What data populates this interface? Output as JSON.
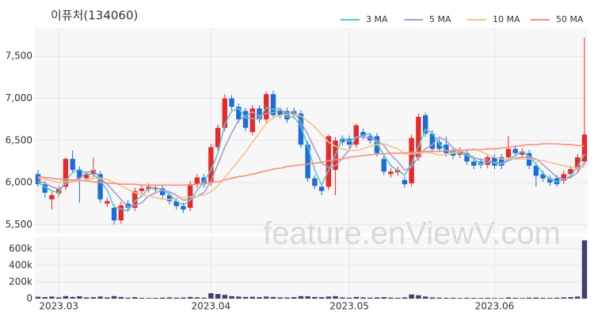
{
  "chart_data": {
    "type": "candlestick",
    "title": "이퓨처(134060)",
    "watermark": "feature.enViewV.com",
    "categories": [
      null,
      null,
      null,
      "2023.03",
      null,
      null,
      null,
      null,
      null,
      null,
      null,
      null,
      null,
      null,
      null,
      null,
      null,
      null,
      null,
      null,
      null,
      null,
      null,
      null,
      null,
      "2023.04",
      null,
      null,
      null,
      null,
      null,
      null,
      null,
      null,
      null,
      null,
      null,
      null,
      null,
      null,
      null,
      null,
      null,
      null,
      null,
      "2023.05",
      null,
      null,
      null,
      null,
      null,
      null,
      null,
      null,
      null,
      null,
      null,
      null,
      null,
      null,
      null,
      null,
      null,
      null,
      null,
      null,
      "2023.06",
      null,
      null,
      null,
      null,
      null,
      null,
      null,
      null,
      null,
      null,
      null,
      null,
      null
    ],
    "open": [
      6100,
      5980,
      5800,
      5870,
      5950,
      6280,
      6150,
      6050,
      6100,
      6100,
      5750,
      5700,
      5550,
      5750,
      5700,
      5900,
      5920,
      5920,
      5930,
      5850,
      5780,
      5720,
      5700,
      5980,
      6060,
      6000,
      6420,
      6650,
      7000,
      6900,
      6850,
      6600,
      6880,
      6750,
      7050,
      6850,
      6850,
      6850,
      6820,
      6450,
      6050,
      5950,
      5950,
      6150,
      6520,
      6520,
      6450,
      6600,
      6550,
      6550,
      6280,
      6100,
      6120,
      6030,
      5990,
      6300,
      6800,
      6580,
      6480,
      6450,
      6380,
      6330,
      6350,
      6250,
      6250,
      6210,
      6300,
      6300,
      6300,
      6400,
      6330,
      6350,
      6200,
      6100,
      6050,
      6050,
      6020,
      6100,
      6160,
      6250
    ],
    "high": [
      6150,
      6020,
      5890,
      5960,
      6300,
      6380,
      6190,
      6140,
      6300,
      6140,
      5820,
      5740,
      5770,
      5790,
      5940,
      5970,
      5990,
      5960,
      5970,
      5890,
      5820,
      5760,
      6020,
      6100,
      6100,
      6460,
      6690,
      7050,
      7040,
      6940,
      6890,
      6920,
      6920,
      7080,
      7090,
      6890,
      6890,
      6890,
      6860,
      6490,
      6090,
      5990,
      6570,
      6540,
      6560,
      6560,
      6700,
      6640,
      6590,
      6590,
      6320,
      6170,
      6190,
      6070,
      6570,
      6820,
      6830,
      6620,
      6520,
      6550,
      6420,
      6420,
      6390,
      6290,
      6290,
      6340,
      6340,
      6340,
      6550,
      6440,
      6410,
      6390,
      6240,
      6140,
      6090,
      6090,
      6140,
      6200,
      6340,
      7720
    ],
    "low": [
      5950,
      5820,
      5680,
      5830,
      5910,
      6110,
      5760,
      6010,
      6060,
      5760,
      5710,
      5500,
      5510,
      5660,
      5660,
      5860,
      5880,
      5880,
      5810,
      5740,
      5680,
      5640,
      5660,
      5940,
      5940,
      5960,
      6380,
      6610,
      6860,
      6710,
      6610,
      6560,
      6710,
      6710,
      6760,
      6760,
      6710,
      6760,
      6410,
      6010,
      5920,
      5850,
      5910,
      5850,
      6440,
      6410,
      6410,
      6510,
      6460,
      6310,
      6090,
      6060,
      6080,
      5940,
      5950,
      6260,
      6540,
      6360,
      6360,
      6310,
      6280,
      6290,
      6210,
      6160,
      6170,
      6170,
      6160,
      6160,
      6260,
      6310,
      6290,
      6160,
      5950,
      6010,
      5960,
      5950,
      5980,
      6060,
      6120,
      6210
    ],
    "close": [
      5980,
      5880,
      5850,
      5920,
      6280,
      6150,
      6050,
      6100,
      6150,
      5800,
      5780,
      5550,
      5730,
      5700,
      5900,
      5930,
      5950,
      5940,
      5850,
      5780,
      5720,
      5680,
      5980,
      6060,
      5980,
      6420,
      6650,
      7000,
      6900,
      6750,
      6650,
      6880,
      6750,
      7050,
      6800,
      6800,
      6750,
      6800,
      6450,
      6050,
      5960,
      5900,
      6550,
      6500,
      6480,
      6450,
      6680,
      6550,
      6500,
      6350,
      6130,
      6130,
      6150,
      5980,
      6530,
      6780,
      6580,
      6400,
      6400,
      6350,
      6320,
      6380,
      6250,
      6200,
      6210,
      6300,
      6200,
      6200,
      6400,
      6350,
      6370,
      6200,
      6080,
      6050,
      6000,
      5980,
      6100,
      6160,
      6300,
      6570
    ],
    "up_color": "#e8292b",
    "down_color": "#1a6ed8",
    "ylim": [
      5400,
      7840
    ],
    "yticks": [
      {
        "value": 5500,
        "label": "5,500"
      },
      {
        "value": 6000,
        "label": "6,000"
      },
      {
        "value": 6500,
        "label": "6,500"
      },
      {
        "value": 7000,
        "label": "7,000"
      },
      {
        "value": 7500,
        "label": "7,500"
      }
    ],
    "grid": true,
    "legend": "top-right",
    "series": [
      {
        "name": "3 MA",
        "color": "#5cc6c9",
        "values": [
          6000,
          5950,
          5900,
          5880,
          6020,
          6120,
          6160,
          6100,
          6100,
          6020,
          5910,
          5710,
          5690,
          5660,
          5780,
          5840,
          5930,
          5940,
          5910,
          5860,
          5780,
          5730,
          5790,
          5910,
          6010,
          6150,
          6350,
          6690,
          6850,
          6880,
          6770,
          6760,
          6760,
          6890,
          6870,
          6880,
          6780,
          6780,
          6670,
          6430,
          6150,
          5970,
          6140,
          6330,
          6530,
          6490,
          6540,
          6560,
          6580,
          6470,
          6330,
          6200,
          6140,
          6090,
          6220,
          6430,
          6630,
          6590,
          6460,
          6380,
          6360,
          6350,
          6320,
          6280,
          6220,
          6240,
          6240,
          6230,
          6270,
          6320,
          6370,
          6310,
          6220,
          6110,
          6040,
          6010,
          6030,
          6080,
          6190,
          6340
        ]
      },
      {
        "name": "5 MA",
        "color": "#a99bc9",
        "values": [
          6020,
          5990,
          5950,
          5920,
          5980,
          6020,
          6050,
          6110,
          6150,
          6050,
          5980,
          5890,
          5800,
          5710,
          5730,
          5760,
          5840,
          5880,
          5910,
          5890,
          5850,
          5790,
          5800,
          5840,
          5880,
          6020,
          6220,
          6420,
          6590,
          6740,
          6790,
          6840,
          6790,
          6820,
          6830,
          6860,
          6830,
          6840,
          6720,
          6570,
          6400,
          6230,
          6180,
          6200,
          6290,
          6390,
          6540,
          6540,
          6530,
          6500,
          6440,
          6330,
          6250,
          6150,
          6180,
          6310,
          6400,
          6450,
          6540,
          6500,
          6410,
          6370,
          6340,
          6300,
          6270,
          6270,
          6230,
          6220,
          6260,
          6290,
          6300,
          6300,
          6280,
          6210,
          6140,
          6060,
          6040,
          6060,
          6120,
          6240
        ]
      },
      {
        "name": "10 MA",
        "color": "#f4c28e",
        "values": [
          6050,
          6040,
          6020,
          6000,
          6010,
          6010,
          6020,
          6030,
          6050,
          6050,
          6040,
          6000,
          5960,
          5920,
          5880,
          5860,
          5840,
          5820,
          5800,
          5800,
          5810,
          5820,
          5830,
          5840,
          5850,
          5890,
          5960,
          6060,
          6160,
          6260,
          6360,
          6480,
          6590,
          6700,
          6770,
          6800,
          6810,
          6810,
          6790,
          6730,
          6660,
          6570,
          6480,
          6430,
          6400,
          6380,
          6380,
          6400,
          6430,
          6450,
          6460,
          6430,
          6400,
          6340,
          6340,
          6350,
          6360,
          6350,
          6330,
          6330,
          6350,
          6370,
          6380,
          6400,
          6370,
          6330,
          6300,
          6280,
          6280,
          6280,
          6280,
          6280,
          6270,
          6260,
          6240,
          6220,
          6200,
          6180,
          6170,
          6190
        ]
      },
      {
        "name": "50 MA",
        "color": "#f4907c",
        "values": [
          6070,
          6060,
          6050,
          6040,
          6040,
          6030,
          6030,
          6020,
          6010,
          6000,
          5990,
          5990,
          5980,
          5980,
          5980,
          5970,
          5970,
          5970,
          5970,
          5970,
          5970,
          5970,
          5970,
          5980,
          5990,
          6000,
          6010,
          6030,
          6050,
          6070,
          6080,
          6100,
          6120,
          6140,
          6160,
          6170,
          6190,
          6200,
          6210,
          6220,
          6230,
          6240,
          6260,
          6270,
          6280,
          6300,
          6310,
          6320,
          6330,
          6340,
          6340,
          6350,
          6350,
          6350,
          6360,
          6360,
          6370,
          6370,
          6370,
          6380,
          6380,
          6380,
          6390,
          6390,
          6390,
          6400,
          6400,
          6410,
          6420,
          6430,
          6440,
          6450,
          6450,
          6460,
          6460,
          6460,
          6450,
          6450,
          6440,
          6430
        ]
      }
    ],
    "volume": {
      "color": "#3d416c",
      "ylim": [
        0,
        740000
      ],
      "yticks": [
        0,
        {
          "value": 200000,
          "label": "200k"
        },
        {
          "value": 400000,
          "label": "400k"
        },
        {
          "value": 600000,
          "label": "600k"
        }
      ],
      "values": [
        22000,
        18000,
        25000,
        15000,
        30000,
        20000,
        28000,
        15000,
        18000,
        25000,
        15000,
        30000,
        20000,
        12000,
        18000,
        10000,
        8000,
        9000,
        12000,
        15000,
        12000,
        14000,
        20000,
        15000,
        12000,
        65000,
        55000,
        45000,
        30000,
        25000,
        20000,
        22000,
        18000,
        25000,
        20000,
        15000,
        14000,
        18000,
        30000,
        28000,
        20000,
        18000,
        25000,
        30000,
        15000,
        12000,
        20000,
        15000,
        12000,
        15000,
        18000,
        12000,
        10000,
        15000,
        50000,
        40000,
        25000,
        15000,
        12000,
        10000,
        10000,
        8000,
        10000,
        9000,
        8000,
        10000,
        8000,
        7000,
        15000,
        10000,
        8000,
        12000,
        14000,
        10000,
        9000,
        12000,
        15000,
        18000,
        25000,
        700000
      ]
    }
  }
}
